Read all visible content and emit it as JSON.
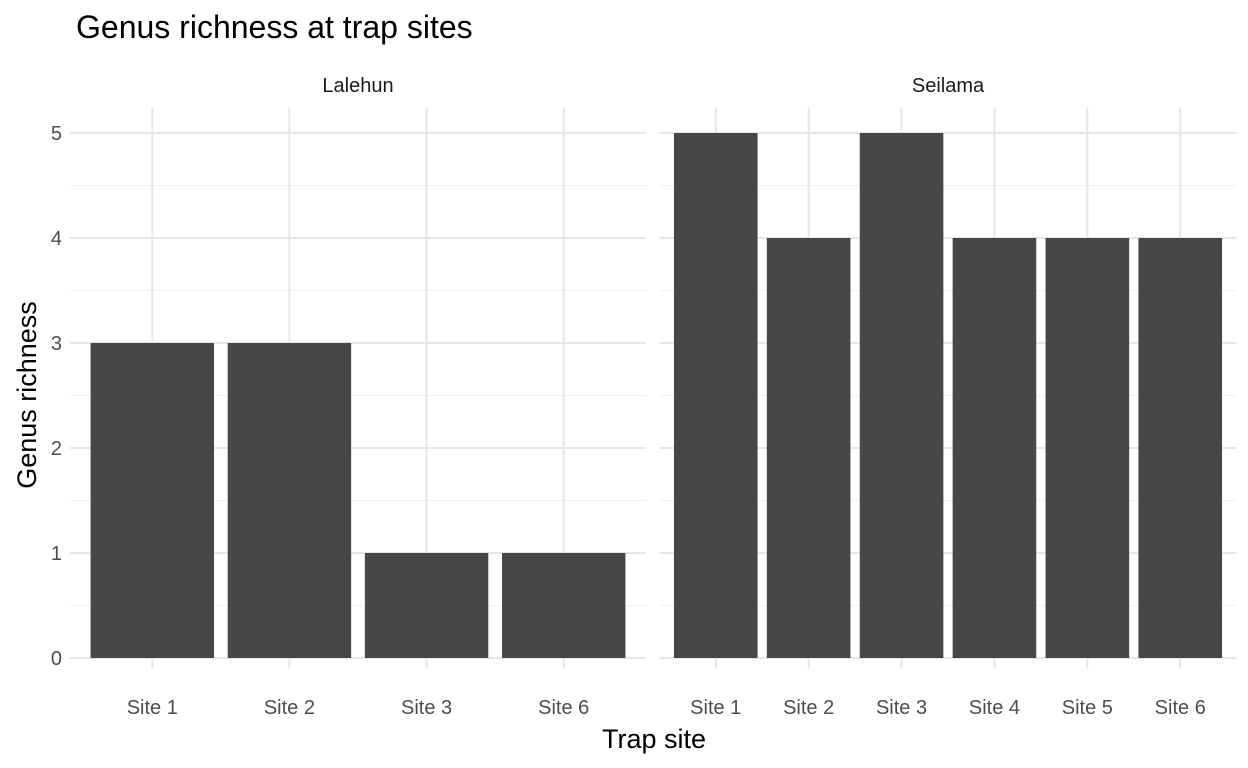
{
  "chart_data": {
    "type": "bar",
    "title": "Genus richness at trap sites",
    "xlabel": "Trap site",
    "ylabel": "Genus richness",
    "ylim": [
      0,
      5
    ],
    "yticks": [
      "0",
      "1",
      "2",
      "3",
      "4",
      "5"
    ],
    "grid": true,
    "bar_color": "#474747",
    "panels": [
      {
        "name": "Lalehun",
        "categories": [
          "Site 1",
          "Site 2",
          "Site 3",
          "Site 6"
        ],
        "values": [
          3,
          3,
          1,
          1
        ]
      },
      {
        "name": "Seilama",
        "categories": [
          "Site 1",
          "Site 2",
          "Site 3",
          "Site 4",
          "Site 5",
          "Site 6"
        ],
        "values": [
          5,
          4,
          5,
          4,
          4,
          4
        ]
      }
    ]
  }
}
